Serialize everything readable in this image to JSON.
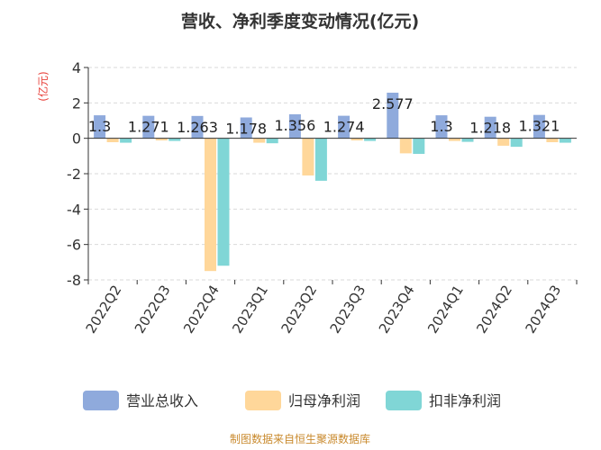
{
  "chart_data": {
    "type": "bar",
    "title": "营收、净利季度变动情况(亿元)",
    "ylabel": "(亿元)",
    "xlabel": "",
    "ylim": [
      -8,
      4
    ],
    "yticks": [
      4,
      2,
      0,
      -2,
      -4,
      -6,
      -8
    ],
    "grid": true,
    "legend_position": "bottom",
    "categories": [
      "2022Q2",
      "2022Q3",
      "2022Q4",
      "2023Q1",
      "2023Q2",
      "2023Q3",
      "2023Q4",
      "2024Q1",
      "2024Q2",
      "2024Q3"
    ],
    "series": [
      {
        "name": "营业总收入",
        "color": "#8faadc",
        "values": [
          1.3,
          1.271,
          1.263,
          1.178,
          1.356,
          1.274,
          2.577,
          1.3,
          1.218,
          1.321
        ]
      },
      {
        "name": "归母净利润",
        "color": "#ffd79a",
        "values": [
          -0.22,
          -0.12,
          -7.5,
          -0.25,
          -2.1,
          -0.12,
          -0.85,
          -0.15,
          -0.42,
          -0.22
        ]
      },
      {
        "name": "扣非净利润",
        "color": "#80d6d6",
        "values": [
          -0.25,
          -0.15,
          -7.2,
          -0.28,
          -2.4,
          -0.15,
          -0.88,
          -0.2,
          -0.48,
          -0.25
        ]
      }
    ],
    "data_labels": [
      "1.3",
      "1.271",
      "1.263",
      "1.178",
      "1.356",
      "1.274",
      "2.577",
      "1.3",
      "1.218",
      "1.321"
    ]
  },
  "footer": "制图数据来自恒生聚源数据库"
}
